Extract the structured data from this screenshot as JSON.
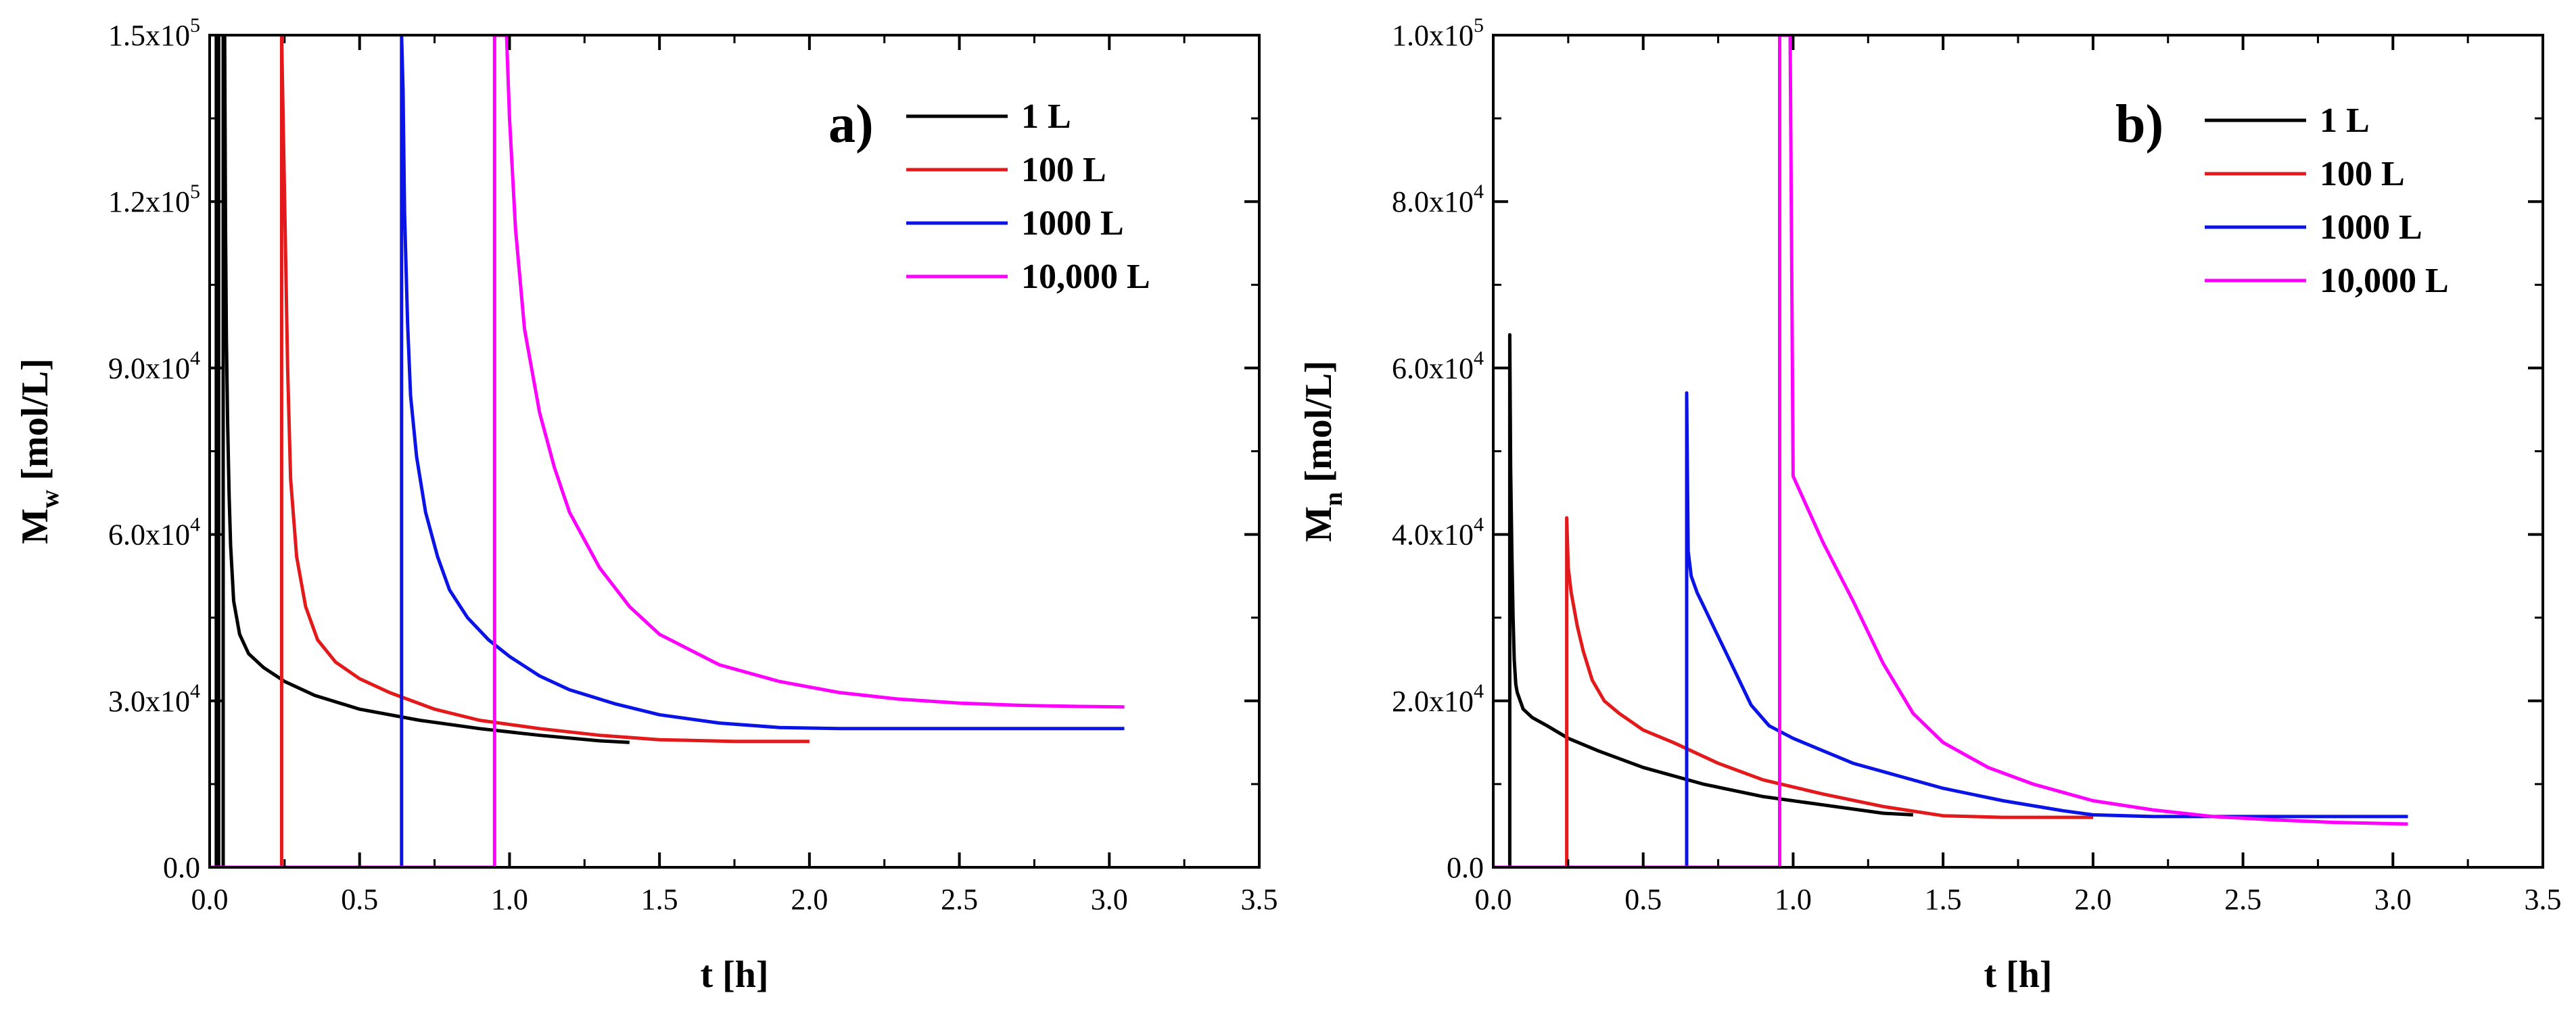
{
  "chart_data": [
    {
      "type": "line",
      "panel_label": "a)",
      "xlabel": "t [h]",
      "ylabel_main": "M",
      "ylabel_sub": "w",
      "ylabel_unit": " [mol/L]",
      "xlim": [
        0,
        3.5
      ],
      "ylim": [
        0,
        150000
      ],
      "x_ticks": [
        0,
        0.5,
        1,
        1.5,
        2,
        2.5,
        3,
        3.5
      ],
      "x_tick_labels": [
        "0.0",
        "0.5",
        "1.0",
        "1.5",
        "2.0",
        "2.5",
        "3.0",
        "3.5"
      ],
      "y_ticks": [
        0,
        30000,
        60000,
        90000,
        120000,
        150000
      ],
      "y_tick_labels": [
        {
          "base": "0.0",
          "exp": ""
        },
        {
          "base": "3.0x10",
          "exp": "4"
        },
        {
          "base": "6.0x10",
          "exp": "4"
        },
        {
          "base": "9.0x10",
          "exp": "4"
        },
        {
          "base": "1.2x10",
          "exp": "5"
        },
        {
          "base": "1.5x10",
          "exp": "5"
        }
      ],
      "legend_position": "top-right",
      "series": [
        {
          "name": "1 L",
          "color": "#000000",
          "x": [
            0.0,
            0.022,
            0.022,
            0.03,
            0.03,
            0.045,
            0.045,
            0.05,
            0.053,
            0.056,
            0.06,
            0.065,
            0.07,
            0.08,
            0.1,
            0.13,
            0.18,
            0.25,
            0.35,
            0.5,
            0.7,
            0.9,
            1.1,
            1.3,
            1.4
          ],
          "y": [
            0,
            0,
            150000,
            150000,
            0,
            0,
            150000,
            150000,
            115000,
            95000,
            80000,
            67000,
            58000,
            48000,
            42000,
            38500,
            36000,
            33500,
            31000,
            28500,
            26500,
            25000,
            23800,
            22800,
            22500
          ]
        },
        {
          "name": "100 L",
          "color": "#e31a1c",
          "x": [
            0.0,
            0.24,
            0.24,
            0.25,
            0.26,
            0.27,
            0.29,
            0.32,
            0.36,
            0.42,
            0.5,
            0.6,
            0.75,
            0.9,
            1.1,
            1.3,
            1.5,
            1.75,
            2.0
          ],
          "y": [
            0,
            0,
            150000,
            120000,
            90000,
            70000,
            56000,
            47000,
            41000,
            37000,
            34000,
            31500,
            28500,
            26500,
            25000,
            23800,
            23000,
            22700,
            22700
          ]
        },
        {
          "name": "1000 L",
          "color": "#0a14e6",
          "x": [
            0.0,
            0.64,
            0.64,
            0.645,
            0.65,
            0.66,
            0.67,
            0.69,
            0.72,
            0.76,
            0.8,
            0.86,
            0.93,
            1.0,
            1.1,
            1.2,
            1.35,
            1.5,
            1.7,
            1.9,
            2.1,
            2.5,
            3.05
          ],
          "y": [
            0,
            0,
            150000,
            140000,
            118000,
            98000,
            85000,
            74000,
            64000,
            56000,
            50000,
            45000,
            41000,
            38000,
            34500,
            32000,
            29500,
            27500,
            26000,
            25200,
            25000,
            25000,
            25000
          ]
        },
        {
          "name": "10,000 L",
          "color": "#ff00ff",
          "x": [
            0.0,
            0.95,
            0.95,
            0.97,
            0.97,
            0.99,
            1.0,
            1.02,
            1.05,
            1.1,
            1.15,
            1.2,
            1.3,
            1.4,
            1.5,
            1.7,
            1.9,
            2.1,
            2.3,
            2.5,
            2.7,
            2.9,
            3.05
          ],
          "y": [
            0,
            0,
            150000,
            150000,
            150000,
            150000,
            135000,
            115000,
            97000,
            82000,
            72000,
            64000,
            54000,
            47000,
            42000,
            36500,
            33500,
            31500,
            30300,
            29600,
            29200,
            29000,
            28900
          ]
        }
      ]
    },
    {
      "type": "line",
      "panel_label": "b)",
      "xlabel": "t [h]",
      "ylabel_main": "M",
      "ylabel_sub": "n",
      "ylabel_unit": " [mol/L]",
      "xlim": [
        0,
        3.5
      ],
      "ylim": [
        0,
        100000
      ],
      "x_ticks": [
        0,
        0.5,
        1,
        1.5,
        2,
        2.5,
        3,
        3.5
      ],
      "x_tick_labels": [
        "0.0",
        "0.5",
        "1.0",
        "1.5",
        "2.0",
        "2.5",
        "3.0",
        "3.5"
      ],
      "y_ticks": [
        0,
        20000,
        40000,
        60000,
        80000,
        100000
      ],
      "y_tick_labels": [
        {
          "base": "0.0",
          "exp": ""
        },
        {
          "base": "2.0x10",
          "exp": "4"
        },
        {
          "base": "4.0x10",
          "exp": "4"
        },
        {
          "base": "6.0x10",
          "exp": "4"
        },
        {
          "base": "8.0x10",
          "exp": "4"
        },
        {
          "base": "1.0x10",
          "exp": "5"
        }
      ],
      "legend_position": "top-right",
      "series": [
        {
          "name": "1 L",
          "color": "#000000",
          "x": [
            0.0,
            0.055,
            0.055,
            0.058,
            0.062,
            0.066,
            0.07,
            0.075,
            0.08,
            0.09,
            0.1,
            0.13,
            0.18,
            0.25,
            0.35,
            0.5,
            0.7,
            0.9,
            1.1,
            1.3,
            1.4
          ],
          "y": [
            0,
            0,
            64000,
            48000,
            38000,
            30000,
            25000,
            22000,
            21000,
            20000,
            19000,
            18000,
            17000,
            15500,
            14000,
            12000,
            10000,
            8500,
            7500,
            6500,
            6300
          ]
        },
        {
          "name": "100 L",
          "color": "#e31a1c",
          "x": [
            0.0,
            0.245,
            0.245,
            0.25,
            0.26,
            0.28,
            0.3,
            0.33,
            0.37,
            0.42,
            0.5,
            0.6,
            0.75,
            0.9,
            1.1,
            1.3,
            1.5,
            1.7,
            2.0
          ],
          "y": [
            0,
            0,
            42000,
            36000,
            33000,
            29000,
            26000,
            22500,
            20000,
            18500,
            16500,
            15000,
            12500,
            10500,
            8800,
            7300,
            6200,
            6000,
            6000
          ]
        },
        {
          "name": "1000 L",
          "color": "#0a14e6",
          "x": [
            0.0,
            0.645,
            0.645,
            0.65,
            0.66,
            0.68,
            0.7,
            0.74,
            0.78,
            0.82,
            0.86,
            0.92,
            1.0,
            1.1,
            1.2,
            1.35,
            1.5,
            1.7,
            1.9,
            2.0,
            2.2,
            2.5,
            3.05
          ],
          "y": [
            0,
            0,
            57000,
            38000,
            35000,
            33000,
            31500,
            28500,
            25500,
            22500,
            19500,
            17000,
            15500,
            14000,
            12500,
            11000,
            9500,
            8000,
            6800,
            6300,
            6100,
            6100,
            6100
          ]
        },
        {
          "name": "10,000 L",
          "color": "#ff00ff",
          "x": [
            0.0,
            0.955,
            0.955,
            0.975,
            0.975,
            0.99,
            1.0,
            1.05,
            1.1,
            1.2,
            1.3,
            1.4,
            1.5,
            1.65,
            1.8,
            2.0,
            2.2,
            2.4,
            2.6,
            2.8,
            3.05
          ],
          "y": [
            0,
            0,
            100000,
            100000,
            100000,
            100000,
            47000,
            43000,
            39000,
            32000,
            24500,
            18500,
            15000,
            12000,
            10000,
            8000,
            6900,
            6100,
            5700,
            5400,
            5200
          ]
        }
      ]
    }
  ]
}
